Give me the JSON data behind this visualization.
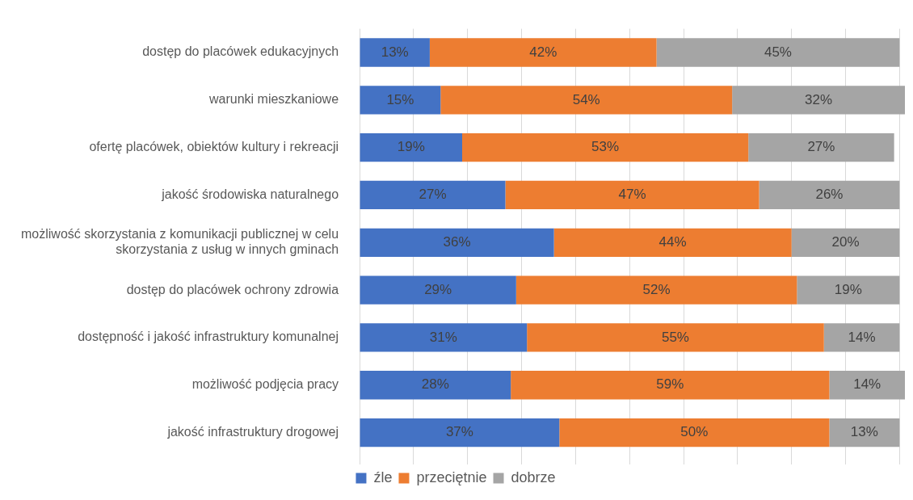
{
  "chart_data": {
    "type": "bar",
    "orientation": "horizontal",
    "stacked": true,
    "categories": [
      "dostęp do placówek edukacyjnych",
      "warunki mieszkaniowe",
      "ofertę placówek, obiektów kultury i rekreacji",
      "jakość środowiska naturalnego",
      "możliwość skorzystania z komunikacji publicznej w celu skorzystania z usług w innych gminach",
      "dostęp do placówek ochrony zdrowia",
      "dostępność i jakość infrastruktury komunalnej",
      "możliwość podjęcia pracy",
      "jakość infrastruktury drogowej"
    ],
    "series": [
      {
        "name": "źle",
        "color": "#4472c4",
        "values": [
          13,
          15,
          19,
          27,
          36,
          29,
          31,
          28,
          37
        ],
        "value_labels": [
          "13%",
          "15%",
          "19%",
          "27%",
          "36%",
          "29%",
          "31%",
          "28%",
          "37%"
        ]
      },
      {
        "name": "przeciętnie",
        "color": "#ed7d31",
        "values": [
          42,
          54,
          53,
          47,
          44,
          52,
          55,
          59,
          50
        ],
        "value_labels": [
          "42%",
          "54%",
          "53%",
          "47%",
          "44%",
          "52%",
          "55%",
          "59%",
          "50%"
        ]
      },
      {
        "name": "dobrze",
        "color": "#a5a5a5",
        "values": [
          45,
          32,
          27,
          26,
          20,
          19,
          14,
          14,
          13
        ],
        "value_labels": [
          "45%",
          "32%",
          "27%",
          "26%",
          "20%",
          "19%",
          "14%",
          "14%",
          "13%"
        ]
      }
    ],
    "xlim": [
      0,
      101
    ],
    "xticks": [
      {
        "value": 0,
        "label": null
      },
      {
        "value": 10,
        "label": null
      },
      {
        "value": 20,
        "label": null
      },
      {
        "value": 30,
        "label": null
      },
      {
        "value": 40,
        "label": null
      },
      {
        "value": 50,
        "label": null
      },
      {
        "value": 60,
        "label": null
      },
      {
        "value": 70,
        "label": null
      },
      {
        "value": 80,
        "label": null
      },
      {
        "value": 90,
        "label": null
      },
      {
        "value": 100,
        "label": null
      }
    ],
    "tick_labels": "y",
    "grid": "x",
    "legend": "bottom"
  }
}
